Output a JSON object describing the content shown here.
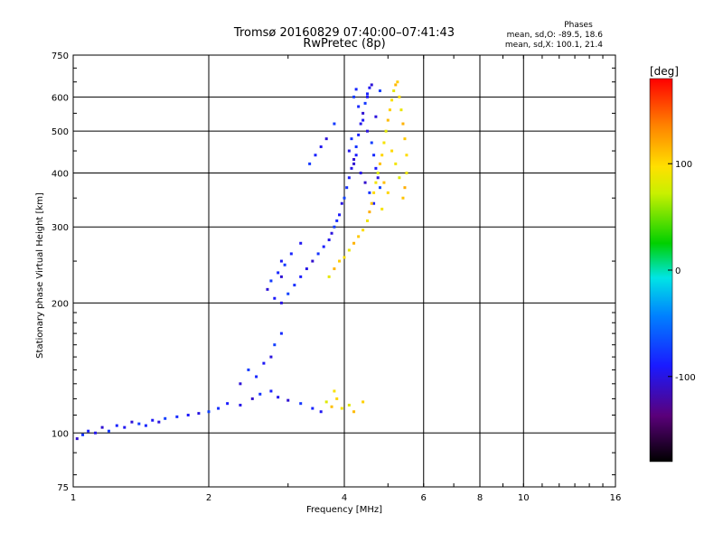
{
  "chart_data": {
    "type": "scatter",
    "title": "Tromsø 20160829 07:40:00–07:41:43",
    "subtitle": "RwPretec (8p)",
    "xlabel": "Frequency [MHz]",
    "ylabel": "Stationary phase Virtual Height [km]",
    "x_scale": "log2",
    "y_scale": "log",
    "xlim": [
      1,
      16
    ],
    "ylim": [
      75,
      750
    ],
    "x_ticks": [
      "1",
      "2",
      "4",
      "6",
      "8",
      "10",
      "16"
    ],
    "x_tick_values": [
      1,
      2,
      4,
      6,
      8,
      10,
      16
    ],
    "y_ticks": [
      "75",
      "100",
      "200",
      "300",
      "400",
      "500",
      "600",
      "750"
    ],
    "y_tick_values": [
      75,
      100,
      200,
      300,
      400,
      500,
      600,
      750
    ],
    "grid": true,
    "stats": {
      "heading": "Phases",
      "line_o": "mean, sd,O: -89.5, 18.6",
      "line_x": "mean, sd,X: 100.1, 21.4"
    },
    "colorbar": {
      "label": "[deg]",
      "range": [
        -180,
        180
      ],
      "ticks": [
        "100",
        "0",
        "-100"
      ],
      "tick_values": [
        100,
        0,
        -100
      ]
    },
    "series": [
      {
        "name": "O",
        "phase_mean": -89.5,
        "points": [
          [
            1.02,
            97
          ],
          [
            1.05,
            99
          ],
          [
            1.08,
            101
          ],
          [
            1.12,
            100
          ],
          [
            1.16,
            103
          ],
          [
            1.2,
            101
          ],
          [
            1.25,
            104
          ],
          [
            1.3,
            103
          ],
          [
            1.35,
            106
          ],
          [
            1.4,
            105
          ],
          [
            1.45,
            104
          ],
          [
            1.5,
            107
          ],
          [
            1.55,
            106
          ],
          [
            1.6,
            108
          ],
          [
            1.7,
            109
          ],
          [
            1.8,
            110
          ],
          [
            1.9,
            111
          ],
          [
            2.0,
            112
          ],
          [
            2.1,
            114
          ],
          [
            2.2,
            117
          ],
          [
            2.35,
            116
          ],
          [
            2.5,
            120
          ],
          [
            2.6,
            123
          ],
          [
            2.75,
            125
          ],
          [
            2.85,
            121
          ],
          [
            3.0,
            119
          ],
          [
            3.2,
            117
          ],
          [
            3.4,
            114
          ],
          [
            3.55,
            112
          ],
          [
            2.35,
            130
          ],
          [
            2.45,
            140
          ],
          [
            2.55,
            135
          ],
          [
            2.65,
            145
          ],
          [
            2.75,
            150
          ],
          [
            2.8,
            160
          ],
          [
            2.9,
            170
          ],
          [
            2.8,
            205
          ],
          [
            2.9,
            200
          ],
          [
            3.0,
            210
          ],
          [
            3.1,
            220
          ],
          [
            3.2,
            230
          ],
          [
            3.3,
            240
          ],
          [
            3.4,
            250
          ],
          [
            3.5,
            260
          ],
          [
            3.6,
            270
          ],
          [
            3.7,
            280
          ],
          [
            2.9,
            230
          ],
          [
            2.95,
            245
          ],
          [
            3.05,
            260
          ],
          [
            3.2,
            275
          ],
          [
            2.7,
            215
          ],
          [
            2.75,
            225
          ],
          [
            2.85,
            235
          ],
          [
            2.9,
            250
          ],
          [
            3.75,
            290
          ],
          [
            3.8,
            300
          ],
          [
            3.85,
            310
          ],
          [
            3.9,
            320
          ],
          [
            3.95,
            340
          ],
          [
            4.0,
            350
          ],
          [
            4.05,
            370
          ],
          [
            4.1,
            390
          ],
          [
            4.15,
            410
          ],
          [
            4.2,
            430
          ],
          [
            4.25,
            460
          ],
          [
            4.3,
            490
          ],
          [
            4.35,
            520
          ],
          [
            4.4,
            550
          ],
          [
            4.45,
            580
          ],
          [
            4.5,
            610
          ],
          [
            4.55,
            630
          ],
          [
            4.6,
            640
          ],
          [
            4.2,
            600
          ],
          [
            4.3,
            570
          ],
          [
            4.4,
            530
          ],
          [
            4.5,
            500
          ],
          [
            4.6,
            470
          ],
          [
            4.65,
            440
          ],
          [
            4.7,
            410
          ],
          [
            4.75,
            390
          ],
          [
            4.8,
            370
          ],
          [
            4.15,
            480
          ],
          [
            4.25,
            440
          ],
          [
            4.35,
            400
          ],
          [
            4.45,
            380
          ],
          [
            4.55,
            360
          ],
          [
            4.65,
            340
          ],
          [
            4.1,
            450
          ],
          [
            4.2,
            420
          ],
          [
            3.35,
            420
          ],
          [
            3.45,
            440
          ],
          [
            3.55,
            460
          ],
          [
            3.65,
            480
          ],
          [
            3.8,
            520
          ],
          [
            4.25,
            625
          ],
          [
            4.5,
            600
          ],
          [
            4.7,
            540
          ],
          [
            4.8,
            620
          ]
        ]
      },
      {
        "name": "X",
        "phase_mean": 100.1,
        "points": [
          [
            3.65,
            118
          ],
          [
            3.75,
            115
          ],
          [
            3.85,
            120
          ],
          [
            3.95,
            114
          ],
          [
            4.1,
            116
          ],
          [
            4.2,
            112
          ],
          [
            4.4,
            118
          ],
          [
            3.8,
            125
          ],
          [
            3.7,
            230
          ],
          [
            3.8,
            240
          ],
          [
            3.9,
            250
          ],
          [
            4.0,
            255
          ],
          [
            4.1,
            265
          ],
          [
            4.2,
            275
          ],
          [
            4.3,
            285
          ],
          [
            4.4,
            295
          ],
          [
            4.5,
            310
          ],
          [
            4.55,
            325
          ],
          [
            4.6,
            340
          ],
          [
            4.65,
            360
          ],
          [
            4.7,
            380
          ],
          [
            4.75,
            400
          ],
          [
            4.8,
            420
          ],
          [
            4.85,
            440
          ],
          [
            4.9,
            470
          ],
          [
            4.95,
            500
          ],
          [
            5.0,
            530
          ],
          [
            5.05,
            560
          ],
          [
            5.1,
            590
          ],
          [
            5.15,
            620
          ],
          [
            5.2,
            640
          ],
          [
            5.25,
            650
          ],
          [
            5.3,
            600
          ],
          [
            5.35,
            560
          ],
          [
            5.4,
            520
          ],
          [
            5.45,
            480
          ],
          [
            5.5,
            440
          ],
          [
            5.5,
            400
          ],
          [
            5.45,
            370
          ],
          [
            5.4,
            350
          ],
          [
            5.1,
            450
          ],
          [
            5.2,
            420
          ],
          [
            5.3,
            390
          ],
          [
            4.9,
            380
          ],
          [
            5.0,
            360
          ],
          [
            4.85,
            330
          ]
        ]
      }
    ]
  }
}
